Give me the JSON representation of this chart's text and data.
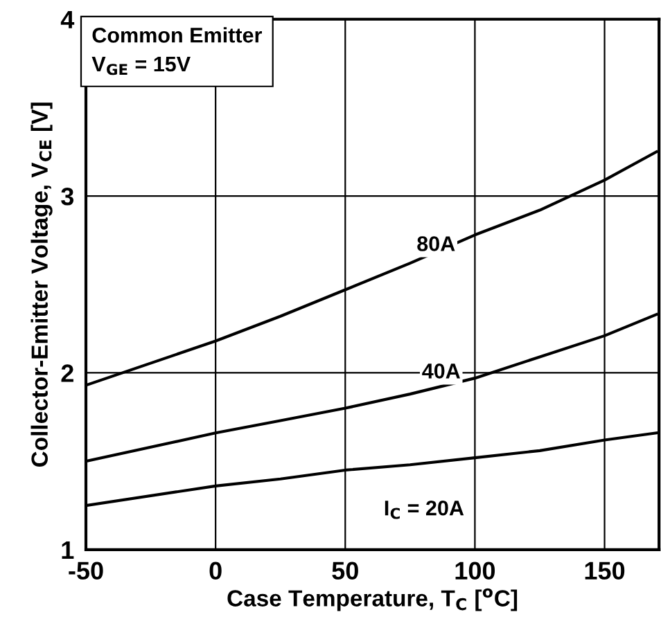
{
  "chart_data": {
    "type": "line",
    "xlabel": "Case Temperature, T$_{C}$ [$^{o}$C]",
    "ylabel": "Collector-Emitter Voltage, V$_{CE}$ [V]",
    "x": [
      -50,
      0,
      25,
      50,
      75,
      100,
      125,
      150,
      170
    ],
    "series": [
      {
        "color": "#000000",
        "values": [
          1.93,
          2.18,
          2.32,
          2.47,
          2.62,
          2.78,
          2.92,
          3.09,
          3.25
        ]
      },
      {
        "color": "#000000",
        "values": [
          1.5,
          1.66,
          1.73,
          1.8,
          1.88,
          1.97,
          2.09,
          2.21,
          2.33
        ]
      },
      {
        "color": "#000000",
        "values": [
          1.25,
          1.36,
          1.4,
          1.45,
          1.48,
          1.52,
          1.56,
          1.62,
          1.66
        ]
      }
    ],
    "annotations": [
      "Common Emitter\nV$_{GE}$ = 15V",
      {
        "text": "80A",
        "x": 85,
        "y": 2.72
      },
      {
        "text": "40A",
        "x": 87,
        "y": 2.0
      },
      "I$_{C}$ = 20A"
    ],
    "xlim": [
      -50,
      171
    ],
    "ylim": [
      1,
      4
    ],
    "xticks": [
      -50,
      0,
      50,
      100,
      150
    ],
    "yticks": [
      1,
      2,
      3,
      4
    ],
    "grid": true,
    "marker": "none",
    "line_style": "solid"
  }
}
